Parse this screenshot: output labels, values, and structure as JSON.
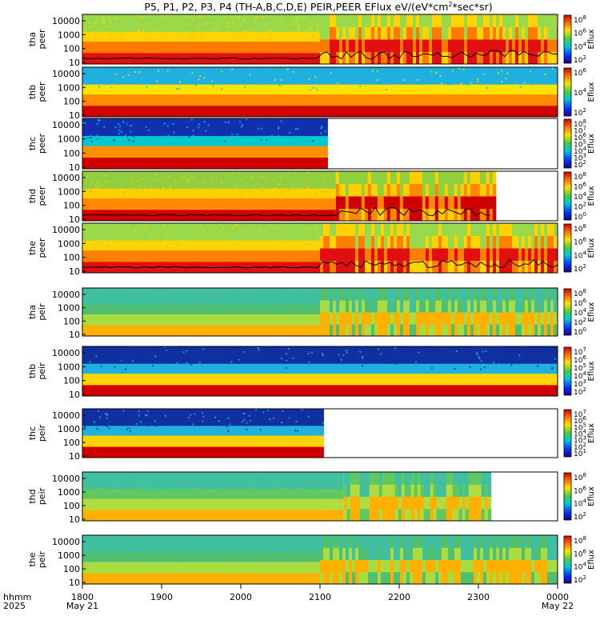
{
  "chart_data": {
    "type": "heatmap",
    "title": "P5, P1, P2, P3, P4 (TH-A,B,C,D,E) PEIR,PEER EFlux eV/(eV*cm",
    "title_sup": "2",
    "title_tail": "*sec*sr)",
    "x_axis": {
      "row_label": "hhmm",
      "year_label": "2025",
      "ticks": [
        "1800",
        "1900",
        "2000",
        "2100",
        "2200",
        "2300",
        "0000"
      ],
      "date_labels": [
        "May 21",
        "May 22"
      ]
    },
    "y_ticks": [
      "10000",
      "1000",
      "100",
      "10"
    ],
    "colorbar_label": "Eflux",
    "panels": [
      {
        "probe": "tha",
        "species": "peer",
        "data_until_hour": 24.0,
        "cbar": [
          "8",
          "6",
          "4",
          "2"
        ],
        "colors": [
          "#e01010",
          "#ff7a00",
          "#ffd400",
          "#9ad94a"
        ],
        "active_from": 21.0,
        "quiet_until": 21.0,
        "has_line": true
      },
      {
        "probe": "thb",
        "species": "peer",
        "data_until_hour": 24.0,
        "cbar": [
          "6",
          "4",
          "2"
        ],
        "colors": [
          "#d00000",
          "#ff8c00",
          "#ffe300",
          "#20b0e0"
        ],
        "active_from": 99,
        "quiet_until": 24.0,
        "has_line": false
      },
      {
        "probe": "thc",
        "species": "peer",
        "data_until_hour": 21.1,
        "cbar": [
          "8",
          "7",
          "6",
          "5",
          "4",
          "3",
          "2"
        ],
        "colors": [
          "#d00000",
          "#ff9000",
          "#00c8d0",
          "#1030b0"
        ],
        "active_from": 99,
        "quiet_until": 21.1,
        "has_line": false
      },
      {
        "probe": "thd",
        "species": "peer",
        "data_until_hour": 23.2,
        "cbar": [
          "8",
          "6",
          "4",
          "2",
          "0"
        ],
        "colors": [
          "#d00000",
          "#ff8800",
          "#ffd000",
          "#90d040"
        ],
        "active_from": 21.2,
        "quiet_until": 21.2,
        "has_line": true
      },
      {
        "probe": "the",
        "species": "peer",
        "data_until_hour": 24.0,
        "cbar": [
          "8",
          "6",
          "4",
          "2"
        ],
        "colors": [
          "#e01010",
          "#ff8000",
          "#ffd400",
          "#9ad94a"
        ],
        "active_from": 21.0,
        "quiet_until": 21.0,
        "has_line": true
      },
      {
        "probe": "tha",
        "species": "peir",
        "data_until_hour": 24.0,
        "cbar": [
          "8",
          "6",
          "4",
          "2",
          "0"
        ],
        "colors": [
          "#ffb000",
          "#a8dc40",
          "#50c070",
          "#40c0a0"
        ],
        "active_from": 21.0,
        "quiet_until": 21.0,
        "has_line": false
      },
      {
        "probe": "thb",
        "species": "peir",
        "data_until_hour": 24.0,
        "cbar": [
          "7",
          "6",
          "5",
          "4",
          "3",
          "2"
        ],
        "colors": [
          "#d00000",
          "#ffd400",
          "#20b0e0",
          "#1030a0"
        ],
        "active_from": 99,
        "quiet_until": 24.0,
        "has_line": false
      },
      {
        "probe": "thc",
        "species": "peir",
        "data_until_hour": 21.05,
        "cbar": [
          "7",
          "6",
          "5",
          "4",
          "3",
          "2",
          "1"
        ],
        "colors": [
          "#d00000",
          "#ffd400",
          "#20b0e0",
          "#1030a0"
        ],
        "active_from": 99,
        "quiet_until": 21.05,
        "has_line": false
      },
      {
        "probe": "thd",
        "species": "peir",
        "data_until_hour": 23.15,
        "cbar": [
          "8",
          "6",
          "4",
          "2"
        ],
        "colors": [
          "#ffb000",
          "#b0dc40",
          "#60c860",
          "#40c0a0"
        ],
        "active_from": 21.3,
        "quiet_until": 21.3,
        "has_line": false
      },
      {
        "probe": "the",
        "species": "peir",
        "data_until_hour": 24.0,
        "cbar": [
          "8",
          "6",
          "4",
          "2"
        ],
        "colors": [
          "#ffb000",
          "#a8dc40",
          "#50c070",
          "#40c0a0"
        ],
        "active_from": 21.0,
        "quiet_until": 21.0,
        "has_line": false
      }
    ]
  }
}
